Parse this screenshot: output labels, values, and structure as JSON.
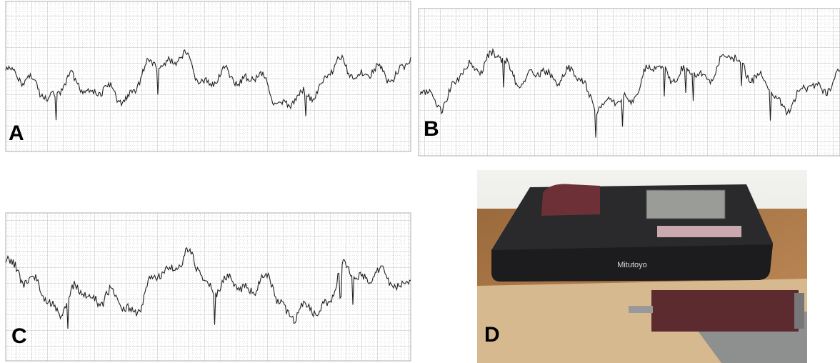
{
  "panels": [
    {
      "label": "A"
    },
    {
      "label": "B"
    },
    {
      "label": "C"
    },
    {
      "label": "D",
      "device_brand": "Mitutoyo"
    }
  ]
}
